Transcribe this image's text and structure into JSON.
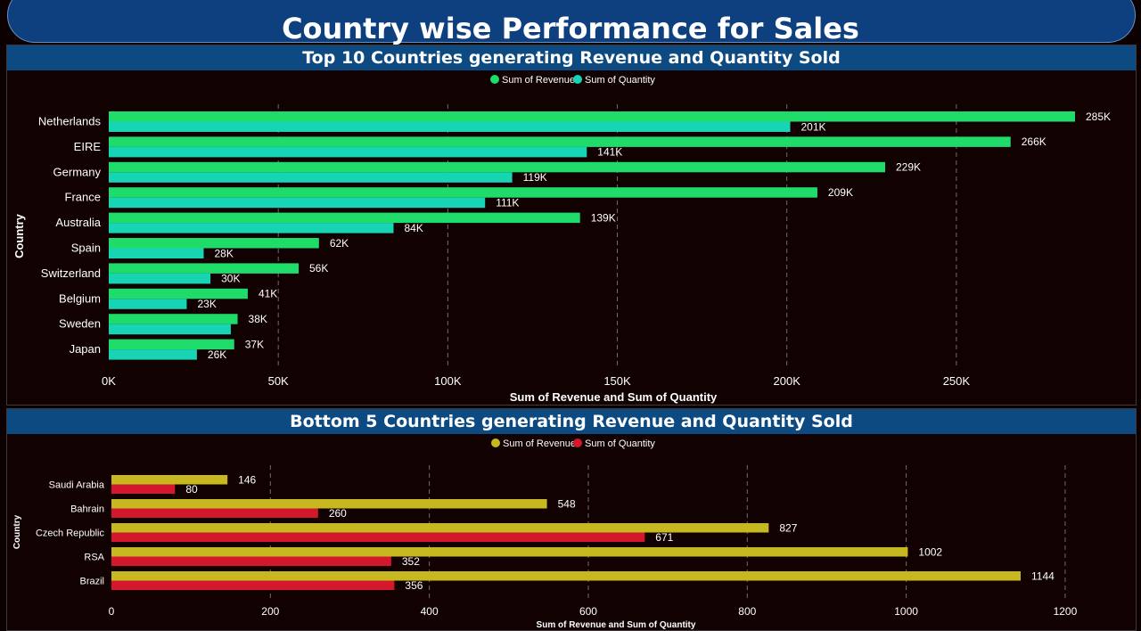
{
  "page": {
    "title": "Country wise Performance for Sales"
  },
  "chart_data": [
    {
      "type": "bar",
      "orientation": "horizontal",
      "title": "Top 10 Countries generating Revenue and Quantity Sold",
      "xlabel": "Sum of Revenue and Sum of Quantity",
      "ylabel": "Country",
      "categories": [
        "Netherlands",
        "EIRE",
        "Germany",
        "France",
        "Australia",
        "Spain",
        "Switzerland",
        "Belgium",
        "Sweden",
        "Japan"
      ],
      "series": [
        {
          "name": "Sum of Revenue",
          "color": "#1fdc6a",
          "values": [
            285000,
            266000,
            229000,
            209000,
            139000,
            62000,
            56000,
            41000,
            38000,
            37000
          ],
          "labels": [
            "285K",
            "266K",
            "229K",
            "209K",
            "139K",
            "62K",
            "56K",
            "41K",
            "38K",
            "37K"
          ]
        },
        {
          "name": "Sum of Quantity",
          "color": "#17d4b4",
          "values": [
            201000,
            141000,
            119000,
            111000,
            84000,
            28000,
            30000,
            23000,
            36000,
            26000
          ],
          "labels": [
            "201K",
            "141K",
            "119K",
            "111K",
            "84K",
            "28K",
            "30K",
            "23K",
            "",
            "26K"
          ]
        }
      ],
      "xlim": [
        0,
        285000
      ],
      "ticks": [
        0,
        50000,
        100000,
        150000,
        200000,
        250000
      ],
      "tick_labels": [
        "0K",
        "50K",
        "100K",
        "150K",
        "200K",
        "250K"
      ],
      "legend": "top-center",
      "grid": true
    },
    {
      "type": "bar",
      "orientation": "horizontal",
      "title": "Bottom 5 Countries generating Revenue and Quantity Sold",
      "xlabel": "Sum of Revenue and Sum of Quantity",
      "ylabel": "Country",
      "categories": [
        "Saudi Arabia",
        "Bahrain",
        "Czech Republic",
        "RSA",
        "Brazil"
      ],
      "series": [
        {
          "name": "Sum of Revenue",
          "color": "#c6b81e",
          "values": [
            146,
            548,
            827,
            1002,
            1144
          ],
          "labels": [
            "146",
            "548",
            "827",
            "1002",
            "1144"
          ]
        },
        {
          "name": "Sum of Quantity",
          "color": "#d3172c",
          "values": [
            80,
            260,
            671,
            352,
            356
          ],
          "labels": [
            "80",
            "260",
            "671",
            "352",
            "356"
          ]
        }
      ],
      "xlim": [
        0,
        1200
      ],
      "ticks": [
        0,
        200,
        400,
        600,
        800,
        1000,
        1200
      ],
      "tick_labels": [
        "0",
        "200",
        "400",
        "600",
        "800",
        "1000",
        "1200"
      ],
      "legend": "top-center",
      "grid": true
    }
  ]
}
